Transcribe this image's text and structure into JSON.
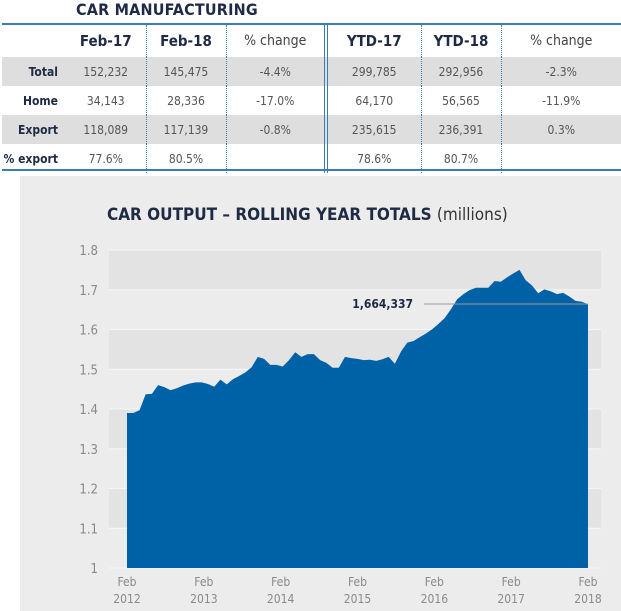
{
  "table": {
    "title": "CAR MANUFACTURING",
    "headers": [
      "",
      "Feb-17",
      "Feb-18",
      "% change",
      "YTD-17",
      "YTD-18",
      "% change"
    ],
    "rows": [
      {
        "label": "Total",
        "cells": [
          "152,232",
          "145,475",
          "-4.4%",
          "299,785",
          "292,956",
          "-2.3%"
        ]
      },
      {
        "label": "Home",
        "cells": [
          "34,143",
          "28,336",
          "-17.0%",
          "64,170",
          "56,565",
          "-11.9%"
        ]
      },
      {
        "label": "Export",
        "cells": [
          "118,089",
          "117,139",
          "-0.8%",
          "235,615",
          "236,391",
          "0.3%"
        ]
      },
      {
        "label": "% export",
        "cells": [
          "77.6%",
          "80.5%",
          "",
          "78.6%",
          "80.7%",
          ""
        ]
      }
    ]
  },
  "chart": {
    "title": "CAR OUTPUT – ROLLING YEAR TOTALS",
    "unit": "(millions)",
    "annotation": "1,664,337",
    "color": "#0062a6"
  },
  "chart_data": {
    "type": "area",
    "title": "CAR OUTPUT – ROLLING YEAR TOTALS (millions)",
    "xlabel": "",
    "ylabel": "",
    "ylim": [
      1.0,
      1.8
    ],
    "yticks": [
      "1",
      "1.1",
      "1.2",
      "1.3",
      "1.4",
      "1.5",
      "1.6",
      "1.7",
      "1.8"
    ],
    "xticks": [
      "Feb 2012",
      "Feb 2013",
      "Feb 2014",
      "Feb 2015",
      "Feb 2016",
      "Feb 2017",
      "Feb 2018"
    ],
    "grid": "horizontal alternating bands",
    "legend": "none",
    "annotations": [
      {
        "text": "1,664,337",
        "x": "Feb 2018",
        "y": 1.664
      }
    ],
    "series": [
      {
        "name": "Rolling year car output",
        "x_start": "Feb 2012",
        "x_step": "month",
        "values": [
          1.39,
          1.39,
          1.397,
          1.437,
          1.438,
          1.46,
          1.455,
          1.447,
          1.452,
          1.459,
          1.464,
          1.467,
          1.467,
          1.463,
          1.456,
          1.474,
          1.462,
          1.475,
          1.483,
          1.492,
          1.505,
          1.531,
          1.526,
          1.511,
          1.511,
          1.507,
          1.523,
          1.543,
          1.531,
          1.538,
          1.538,
          1.523,
          1.516,
          1.504,
          1.504,
          1.531,
          1.528,
          1.526,
          1.523,
          1.524,
          1.521,
          1.525,
          1.531,
          1.514,
          1.545,
          1.567,
          1.571,
          1.581,
          1.59,
          1.601,
          1.614,
          1.629,
          1.651,
          1.676,
          1.689,
          1.699,
          1.705,
          1.705,
          1.705,
          1.722,
          1.72,
          1.731,
          1.741,
          1.75,
          1.724,
          1.711,
          1.691,
          1.701,
          1.696,
          1.689,
          1.692,
          1.683,
          1.672,
          1.67,
          1.664
        ]
      }
    ]
  }
}
